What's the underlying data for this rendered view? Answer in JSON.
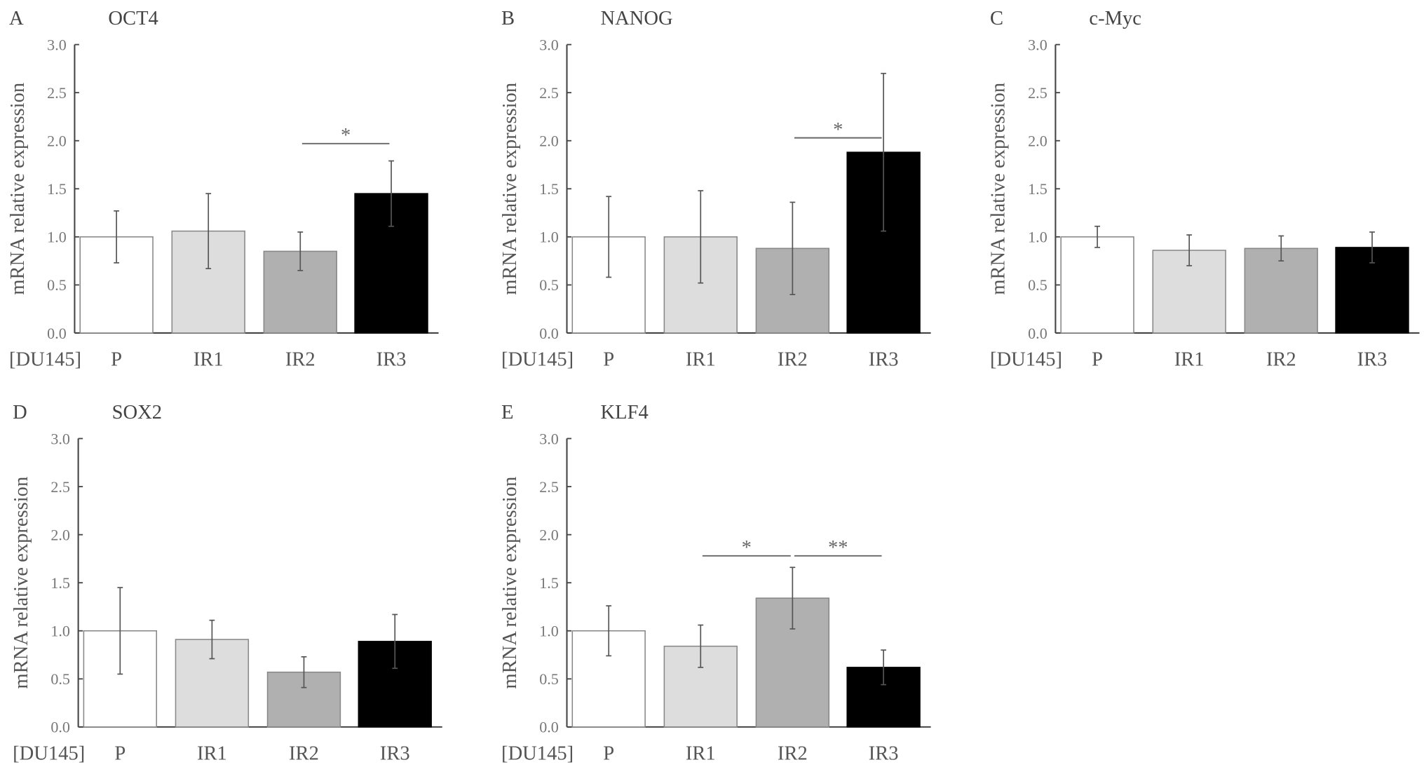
{
  "chart_data": [
    {
      "type": "bar",
      "panel": "A",
      "title": "OCT4",
      "ylabel": "mRNA relative expression",
      "group_label": "[DU145]",
      "categories": [
        "P",
        "IR1",
        "IR2",
        "IR3"
      ],
      "values": [
        1.0,
        1.06,
        0.85,
        1.45
      ],
      "errors": [
        0.27,
        0.39,
        0.2,
        0.34
      ],
      "ylim": [
        0,
        3.0
      ],
      "yticks": [
        "0.0",
        "0.5",
        "1.0",
        "1.5",
        "2.0",
        "2.5",
        "3.0"
      ],
      "significance": [
        {
          "from": "IR2",
          "to": "IR3",
          "label": "*",
          "y": 1.97
        }
      ]
    },
    {
      "type": "bar",
      "panel": "B",
      "title": "NANOG",
      "ylabel": "mRNA relative expression",
      "group_label": "[DU145]",
      "categories": [
        "P",
        "IR1",
        "IR2",
        "IR3"
      ],
      "values": [
        1.0,
        1.0,
        0.88,
        1.88
      ],
      "errors": [
        0.42,
        0.48,
        0.48,
        0.82
      ],
      "ylim": [
        0,
        3.0
      ],
      "yticks": [
        "0.0",
        "0.5",
        "1.0",
        "1.5",
        "2.0",
        "2.5",
        "3.0"
      ],
      "significance": [
        {
          "from": "IR2",
          "to": "IR3",
          "label": "*",
          "y": 2.03
        }
      ]
    },
    {
      "type": "bar",
      "panel": "C",
      "title": "c-Myc",
      "ylabel": "mRNA relative expression",
      "group_label": "[DU145]",
      "categories": [
        "P",
        "IR1",
        "IR2",
        "IR3"
      ],
      "values": [
        1.0,
        0.86,
        0.88,
        0.89
      ],
      "errors": [
        0.11,
        0.16,
        0.13,
        0.16
      ],
      "ylim": [
        0,
        3.0
      ],
      "yticks": [
        "0.0",
        "0.5",
        "1.0",
        "1.5",
        "2.0",
        "2.5",
        "3.0"
      ],
      "significance": []
    },
    {
      "type": "bar",
      "panel": "D",
      "title": "SOX2",
      "ylabel": "mRNA relative expression",
      "group_label": "[DU145]",
      "categories": [
        "P",
        "IR1",
        "IR2",
        "IR3"
      ],
      "values": [
        1.0,
        0.91,
        0.57,
        0.89
      ],
      "errors": [
        0.45,
        0.2,
        0.16,
        0.28
      ],
      "ylim": [
        0,
        3.0
      ],
      "yticks": [
        "0.0",
        "0.5",
        "1.0",
        "1.5",
        "2.0",
        "2.5",
        "3.0"
      ],
      "significance": []
    },
    {
      "type": "bar",
      "panel": "E",
      "title": "KLF4",
      "ylabel": "mRNA relative expression",
      "group_label": "[DU145]",
      "categories": [
        "P",
        "IR1",
        "IR2",
        "IR3"
      ],
      "values": [
        1.0,
        0.84,
        1.34,
        0.62
      ],
      "errors": [
        0.26,
        0.22,
        0.32,
        0.18
      ],
      "ylim": [
        0,
        3.0
      ],
      "yticks": [
        "0.0",
        "0.5",
        "1.0",
        "1.5",
        "2.0",
        "2.5",
        "3.0"
      ],
      "significance": [
        {
          "from": "IR1",
          "to": "IR2",
          "label": "*",
          "y": 1.78
        },
        {
          "from": "IR2",
          "to": "IR3",
          "label": "**",
          "y": 1.78
        }
      ]
    }
  ],
  "colors": {
    "P": "#ffffff",
    "IR1": "#dddddd",
    "IR2": "#b0b0b0",
    "IR3": "#000000",
    "axis": "#444444",
    "bar_edge": "#888888"
  }
}
